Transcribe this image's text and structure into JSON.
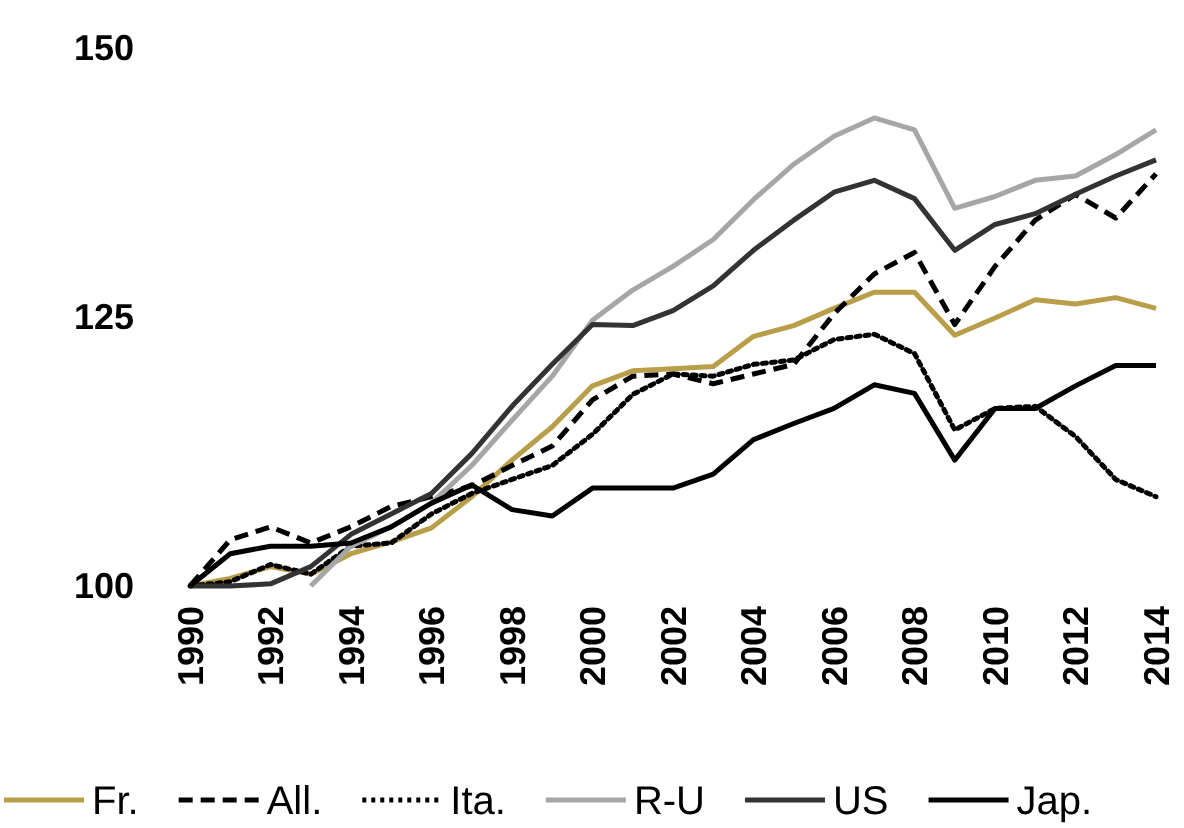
{
  "chart_data": {
    "type": "line",
    "x": [
      1990,
      1991,
      1992,
      1993,
      1994,
      1995,
      1996,
      1997,
      1998,
      1999,
      2000,
      2001,
      2002,
      2003,
      2004,
      2005,
      2006,
      2007,
      2008,
      2009,
      2010,
      2011,
      2012,
      2013,
      2014
    ],
    "xlim": [
      1990,
      2014
    ],
    "xticks": [
      1990,
      1992,
      1994,
      1996,
      1998,
      2000,
      2002,
      2004,
      2006,
      2008,
      2010,
      2012,
      2014
    ],
    "ylim": [
      100,
      150
    ],
    "yticks": [
      100,
      125,
      150
    ],
    "grid": false,
    "legend": "bottom",
    "marker": "none",
    "series": [
      {
        "name": "Fr.",
        "color": "#b89e48",
        "line_style": "solid",
        "values": [
          100,
          100.7,
          101.8,
          101.1,
          103,
          104.1,
          105.4,
          108.3,
          111.7,
          114.8,
          118.6,
          120,
          120.2,
          120.4,
          123.2,
          124.2,
          125.8,
          127.3,
          127.3,
          123.3,
          124.9,
          126.6,
          126.2,
          126.8,
          125.8
        ]
      },
      {
        "name": "All.",
        "color": "#000000",
        "line_style": "dashed",
        "values": [
          100,
          104.3,
          105.5,
          104,
          105.5,
          107.4,
          108.3,
          109.3,
          111.2,
          113,
          117.3,
          119.5,
          119.7,
          118.8,
          119.7,
          120.6,
          125.3,
          129,
          131,
          124.3,
          129.7,
          134,
          136.4,
          134.2,
          138.3
        ]
      },
      {
        "name": "Ita.",
        "color": "#000000",
        "line_style": "dotted",
        "values": [
          100,
          100.4,
          102,
          101.1,
          103.7,
          104,
          106.7,
          108.6,
          109.9,
          111.2,
          114.1,
          117.8,
          119.7,
          119.5,
          120.6,
          121,
          122.9,
          123.4,
          121.6,
          114.5,
          116.5,
          116.7,
          113.9,
          109.9,
          108.3
        ]
      },
      {
        "name": "R-U",
        "color": "#a6a6a6",
        "line_style": "solid",
        "values": [
          null,
          null,
          null,
          100,
          103.7,
          105.5,
          107.7,
          111.2,
          115.4,
          119.5,
          124.7,
          127.5,
          129.7,
          132.2,
          135.9,
          139.2,
          141.8,
          143.5,
          142.4,
          135.1,
          136.2,
          137.7,
          138.1,
          140.1,
          142.4
        ]
      },
      {
        "name": "US",
        "color": "#333333",
        "line_style": "solid",
        "values": [
          100,
          100,
          100.2,
          101.8,
          104.8,
          106.7,
          108.6,
          112.3,
          116.7,
          120.6,
          124.3,
          124.2,
          125.6,
          127.9,
          131.2,
          134,
          136.6,
          137.7,
          136,
          131.2,
          133.6,
          134.6,
          136.4,
          138.1,
          139.6
        ]
      },
      {
        "name": "Jap.",
        "color": "#000000",
        "line_style": "solid",
        "values": [
          100,
          103,
          103.7,
          103.7,
          104,
          105.5,
          107.7,
          109.4,
          107.1,
          106.5,
          109.1,
          109.1,
          109.1,
          110.4,
          113.6,
          115.1,
          116.5,
          118.7,
          117.9,
          111.7,
          116.5,
          116.5,
          118.6,
          120.5,
          120.5
        ]
      }
    ]
  }
}
